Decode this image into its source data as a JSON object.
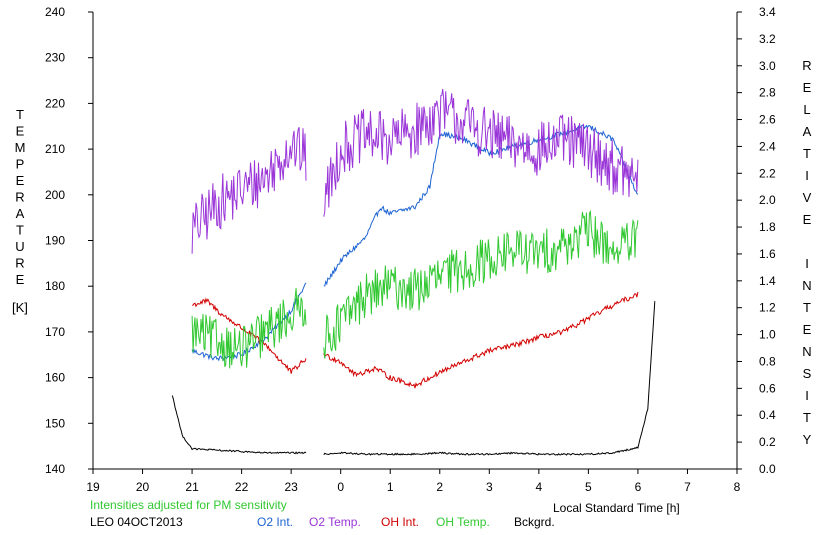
{
  "chart_data": {
    "type": "line",
    "left_axis_label": "TEMPERATURE",
    "left_axis_unit": "[K]",
    "right_axis_label": "RELATIVE INTENSITY",
    "xlabel": "Local Standard Time [h]",
    "note": "Intensities adjusted for PM sensitivity",
    "station": "LEO 04OCT2013",
    "x_ticks": [
      "19",
      "20",
      "21",
      "22",
      "23",
      "0",
      "1",
      "2",
      "3",
      "4",
      "5",
      "6",
      "7",
      "8"
    ],
    "y_left_ticks": [
      "140",
      "150",
      "160",
      "170",
      "180",
      "190",
      "200",
      "210",
      "220",
      "230",
      "240"
    ],
    "y_right_ticks": [
      "0.0",
      "0.2",
      "0.4",
      "0.6",
      "0.8",
      "1.0",
      "1.2",
      "1.4",
      "1.6",
      "1.8",
      "2.0",
      "2.2",
      "2.4",
      "2.6",
      "2.8",
      "3.0",
      "3.2",
      "3.4"
    ],
    "xlim": [
      19,
      32
    ],
    "ylim_left": [
      140,
      240
    ],
    "ylim_right": [
      0,
      3.4
    ],
    "data_gap": [
      23.3,
      23.65
    ],
    "grid": false,
    "legend_position": "bottom",
    "series": [
      {
        "name": "O2 Int.",
        "axis": "right",
        "color": "#1e64d2",
        "x": [
          21.0,
          21.5,
          22.0,
          22.5,
          23.0,
          23.3,
          23.65,
          24.0,
          24.5,
          24.8,
          25.0,
          25.5,
          25.8,
          26.0,
          26.5,
          27.0,
          27.5,
          28.0,
          28.5,
          29.0,
          29.5,
          30.0
        ],
        "y": [
          0.88,
          0.82,
          0.85,
          0.98,
          1.18,
          1.38,
          1.35,
          1.55,
          1.72,
          1.95,
          1.9,
          1.95,
          2.1,
          2.5,
          2.45,
          2.35,
          2.4,
          2.45,
          2.5,
          2.55,
          2.45,
          2.03
        ]
      },
      {
        "name": "O2 Temp.",
        "axis": "left",
        "color": "#9a36d8",
        "x": [
          21.0,
          21.5,
          22.0,
          22.5,
          23.0,
          23.3,
          23.65,
          24.0,
          24.5,
          25.0,
          25.5,
          26.0,
          26.5,
          27.0,
          27.5,
          28.0,
          28.5,
          29.0,
          29.5,
          30.0
        ],
        "y": [
          192,
          198,
          201,
          204,
          211,
          208,
          198,
          210,
          213,
          212,
          214,
          218,
          216,
          213,
          211,
          210,
          212,
          210,
          206,
          203
        ]
      },
      {
        "name": "OH Int.",
        "axis": "right",
        "color": "#d20000",
        "x": [
          21.0,
          21.3,
          21.6,
          22.0,
          22.5,
          23.0,
          23.3,
          23.65,
          24.0,
          24.3,
          24.7,
          25.0,
          25.5,
          26.0,
          26.5,
          27.0,
          27.5,
          28.0,
          28.5,
          29.0,
          29.5,
          30.0
        ],
        "y": [
          1.22,
          1.25,
          1.15,
          1.05,
          0.92,
          0.72,
          0.82,
          0.85,
          0.8,
          0.7,
          0.75,
          0.68,
          0.62,
          0.72,
          0.8,
          0.88,
          0.92,
          0.98,
          1.02,
          1.12,
          1.22,
          1.3
        ]
      },
      {
        "name": "OH Temp.",
        "axis": "left",
        "color": "#32c832",
        "x": [
          21.0,
          21.5,
          22.0,
          22.5,
          23.0,
          23.3,
          23.65,
          24.0,
          24.5,
          25.0,
          25.5,
          26.0,
          26.5,
          27.0,
          27.5,
          28.0,
          28.5,
          29.0,
          29.5,
          30.0
        ],
        "y": [
          170,
          168,
          166,
          170,
          174,
          176,
          168,
          172,
          178,
          180,
          179,
          182,
          184,
          186,
          188,
          187,
          189,
          192,
          188,
          190
        ]
      },
      {
        "name": "Bckgrd.",
        "axis": "right",
        "color": "#000000",
        "x": [
          20.6,
          20.8,
          21.0,
          21.5,
          22.0,
          22.5,
          23.0,
          23.3,
          23.65,
          24.0,
          24.5,
          25.0,
          25.5,
          26.0,
          26.5,
          27.0,
          27.5,
          28.0,
          28.5,
          29.0,
          29.5,
          30.0,
          30.2,
          30.35
        ],
        "y": [
          0.55,
          0.25,
          0.15,
          0.14,
          0.13,
          0.12,
          0.12,
          0.12,
          0.11,
          0.12,
          0.11,
          0.11,
          0.11,
          0.12,
          0.11,
          0.11,
          0.12,
          0.11,
          0.11,
          0.11,
          0.12,
          0.16,
          0.45,
          1.3
        ]
      }
    ]
  }
}
